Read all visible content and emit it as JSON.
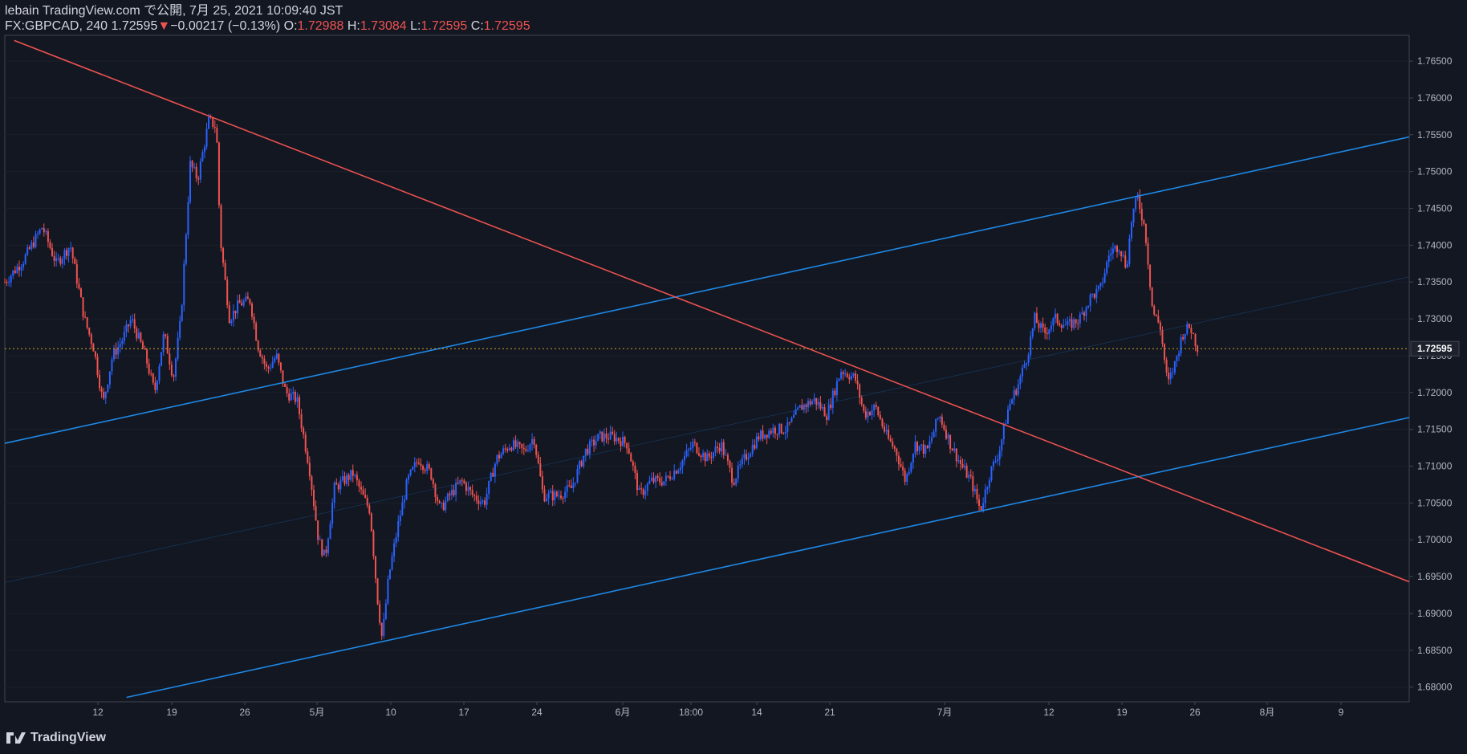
{
  "header": {
    "publisher": "lebain TradingView.com で公開, 7月 25, 2021 10:09:40 JST",
    "symbol": "FX:GBPCAD, 240",
    "last": "1.72595",
    "arrow": "▼",
    "change": "−0.00217 (−0.13%)",
    "o_label": "O:",
    "o": "1.72988",
    "h_label": "H:",
    "h": "1.73084",
    "l_label": "L:",
    "l": "1.72595",
    "c_label": "C:",
    "c": "1.72595"
  },
  "branding": {
    "logo_text": "TradingView",
    "logo_icon": "tradingview-logo-icon"
  },
  "colors": {
    "background": "#131722",
    "up": "#2962ff",
    "down": "#ef5350",
    "channel": "#1e88e5",
    "trend": "#ef5350",
    "grid": "#2a2e39",
    "text": "#b2b5be"
  },
  "chart_data": {
    "type": "candlestick",
    "symbol": "FX:GBPCAD",
    "timeframe": "240",
    "ylim": [
      1.678,
      1.7685
    ],
    "y_ticks": [
      "1.68000",
      "1.68500",
      "1.69000",
      "1.69500",
      "1.70000",
      "1.70500",
      "1.71000",
      "1.71500",
      "1.72000",
      "1.72500",
      "1.73000",
      "1.73500",
      "1.74000",
      "1.74500",
      "1.75000",
      "1.75500",
      "1.76000",
      "1.76500"
    ],
    "x_labels": [
      "12",
      "19",
      "26",
      "5月",
      "10",
      "17",
      "24",
      "6月",
      "18:00",
      "14",
      "21",
      "7月",
      "12",
      "19",
      "26",
      "8月",
      "9"
    ],
    "last_price": "1.72595",
    "price_path": [
      {
        "x": 0,
        "y": 1.735
      },
      {
        "x": 20,
        "y": 1.738
      },
      {
        "x": 40,
        "y": 1.7425
      },
      {
        "x": 55,
        "y": 1.7375
      },
      {
        "x": 70,
        "y": 1.74
      },
      {
        "x": 85,
        "y": 1.73
      },
      {
        "x": 95,
        "y": 1.726
      },
      {
        "x": 105,
        "y": 1.7185
      },
      {
        "x": 115,
        "y": 1.725
      },
      {
        "x": 125,
        "y": 1.727
      },
      {
        "x": 135,
        "y": 1.73
      },
      {
        "x": 150,
        "y": 1.725
      },
      {
        "x": 160,
        "y": 1.72
      },
      {
        "x": 170,
        "y": 1.728
      },
      {
        "x": 180,
        "y": 1.722
      },
      {
        "x": 188,
        "y": 1.73
      },
      {
        "x": 198,
        "y": 1.751
      },
      {
        "x": 206,
        "y": 1.749
      },
      {
        "x": 218,
        "y": 1.757
      },
      {
        "x": 226,
        "y": 1.756
      },
      {
        "x": 230,
        "y": 1.741
      },
      {
        "x": 240,
        "y": 1.73
      },
      {
        "x": 250,
        "y": 1.732
      },
      {
        "x": 262,
        "y": 1.7325
      },
      {
        "x": 270,
        "y": 1.7265
      },
      {
        "x": 280,
        "y": 1.723
      },
      {
        "x": 290,
        "y": 1.725
      },
      {
        "x": 300,
        "y": 1.72
      },
      {
        "x": 312,
        "y": 1.719
      },
      {
        "x": 325,
        "y": 1.71
      },
      {
        "x": 335,
        "y": 1.7
      },
      {
        "x": 342,
        "y": 1.6975
      },
      {
        "x": 352,
        "y": 1.707
      },
      {
        "x": 362,
        "y": 1.708
      },
      {
        "x": 372,
        "y": 1.709
      },
      {
        "x": 382,
        "y": 1.706
      },
      {
        "x": 390,
        "y": 1.704
      },
      {
        "x": 398,
        "y": 1.692
      },
      {
        "x": 403,
        "y": 1.6865
      },
      {
        "x": 410,
        "y": 1.695
      },
      {
        "x": 420,
        "y": 1.702
      },
      {
        "x": 430,
        "y": 1.708
      },
      {
        "x": 442,
        "y": 1.711
      },
      {
        "x": 455,
        "y": 1.709
      },
      {
        "x": 465,
        "y": 1.704
      },
      {
        "x": 475,
        "y": 1.706
      },
      {
        "x": 488,
        "y": 1.708
      },
      {
        "x": 500,
        "y": 1.706
      },
      {
        "x": 512,
        "y": 1.705
      },
      {
        "x": 525,
        "y": 1.711
      },
      {
        "x": 540,
        "y": 1.713
      },
      {
        "x": 555,
        "y": 1.712
      },
      {
        "x": 565,
        "y": 1.714
      },
      {
        "x": 575,
        "y": 1.706
      },
      {
        "x": 590,
        "y": 1.706
      },
      {
        "x": 605,
        "y": 1.707
      },
      {
        "x": 620,
        "y": 1.712
      },
      {
        "x": 635,
        "y": 1.714
      },
      {
        "x": 650,
        "y": 1.714
      },
      {
        "x": 665,
        "y": 1.713
      },
      {
        "x": 678,
        "y": 1.706
      },
      {
        "x": 690,
        "y": 1.708
      },
      {
        "x": 705,
        "y": 1.708
      },
      {
        "x": 720,
        "y": 1.71
      },
      {
        "x": 735,
        "y": 1.713
      },
      {
        "x": 750,
        "y": 1.711
      },
      {
        "x": 765,
        "y": 1.713
      },
      {
        "x": 778,
        "y": 1.708
      },
      {
        "x": 790,
        "y": 1.711
      },
      {
        "x": 805,
        "y": 1.714
      },
      {
        "x": 820,
        "y": 1.715
      },
      {
        "x": 835,
        "y": 1.715
      },
      {
        "x": 850,
        "y": 1.718
      },
      {
        "x": 865,
        "y": 1.719
      },
      {
        "x": 878,
        "y": 1.717
      },
      {
        "x": 893,
        "y": 1.723
      },
      {
        "x": 908,
        "y": 1.722
      },
      {
        "x": 918,
        "y": 1.717
      },
      {
        "x": 930,
        "y": 1.718
      },
      {
        "x": 942,
        "y": 1.714
      },
      {
        "x": 952,
        "y": 1.712
      },
      {
        "x": 962,
        "y": 1.708
      },
      {
        "x": 972,
        "y": 1.713
      },
      {
        "x": 985,
        "y": 1.712
      },
      {
        "x": 998,
        "y": 1.717
      },
      {
        "x": 1010,
        "y": 1.713
      },
      {
        "x": 1022,
        "y": 1.71
      },
      {
        "x": 1032,
        "y": 1.708
      },
      {
        "x": 1042,
        "y": 1.704
      },
      {
        "x": 1052,
        "y": 1.709
      },
      {
        "x": 1062,
        "y": 1.712
      },
      {
        "x": 1072,
        "y": 1.718
      },
      {
        "x": 1082,
        "y": 1.721
      },
      {
        "x": 1092,
        "y": 1.725
      },
      {
        "x": 1100,
        "y": 1.73
      },
      {
        "x": 1110,
        "y": 1.728
      },
      {
        "x": 1122,
        "y": 1.73
      },
      {
        "x": 1135,
        "y": 1.729
      },
      {
        "x": 1148,
        "y": 1.73
      },
      {
        "x": 1160,
        "y": 1.733
      },
      {
        "x": 1170,
        "y": 1.734
      },
      {
        "x": 1180,
        "y": 1.739
      },
      {
        "x": 1190,
        "y": 1.74
      },
      {
        "x": 1198,
        "y": 1.737
      },
      {
        "x": 1204,
        "y": 1.744
      },
      {
        "x": 1210,
        "y": 1.7465
      },
      {
        "x": 1218,
        "y": 1.742
      },
      {
        "x": 1226,
        "y": 1.731
      },
      {
        "x": 1234,
        "y": 1.729
      },
      {
        "x": 1242,
        "y": 1.721
      },
      {
        "x": 1250,
        "y": 1.724
      },
      {
        "x": 1258,
        "y": 1.728
      },
      {
        "x": 1266,
        "y": 1.729
      },
      {
        "x": 1274,
        "y": 1.726
      }
    ],
    "drawings": [
      {
        "name": "channel-upper-line",
        "color": "#1e88e5",
        "from": {
          "x": 0,
          "y": 1.7131
        },
        "to": {
          "x": 1500,
          "y": 1.7547
        }
      },
      {
        "name": "channel-lower-line",
        "color": "#1e88e5",
        "from": {
          "x": 130,
          "y": 1.6786
        },
        "to": {
          "x": 1500,
          "y": 1.7166
        }
      },
      {
        "name": "channel-mid-line",
        "color": "#1e88e5",
        "from": {
          "x": 0,
          "y": 1.6942
        },
        "to": {
          "x": 1500,
          "y": 1.7357
        }
      },
      {
        "name": "downtrend-line",
        "color": "#ef5350",
        "from": {
          "x": 10,
          "y": 1.7678
        },
        "to": {
          "x": 1500,
          "y": 1.6943
        }
      }
    ]
  }
}
